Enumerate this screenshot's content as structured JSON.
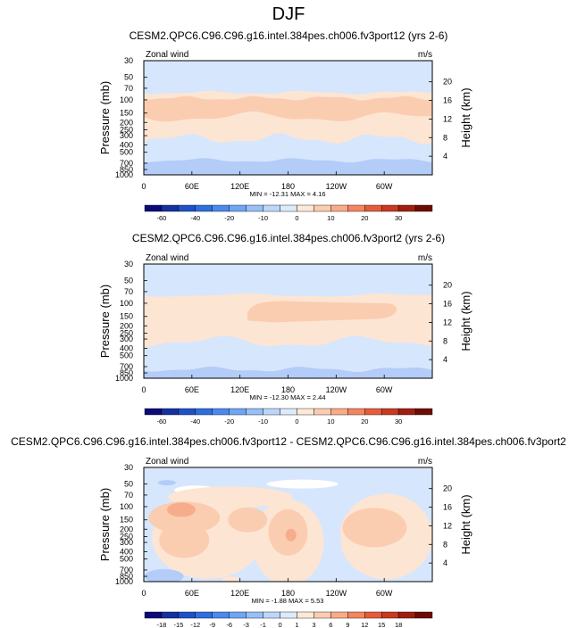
{
  "title": "DJF",
  "chart_data": [
    {
      "type": "heatmap",
      "title": "CESM2.QPC6.C96.C96.g16.intel.384pes.ch006.fv3port12 (yrs 2-6)",
      "variable": "Zonal wind",
      "units": "m/s",
      "ylabel": "Pressure (mb)",
      "y2label": "Height (km)",
      "x_ticks": [
        "0",
        "60E",
        "120E",
        "180",
        "120W",
        "60W"
      ],
      "p_ticks": [
        "30",
        "50",
        "70",
        "100",
        "150",
        "200",
        "250",
        "300",
        "400",
        "500",
        "700",
        "850",
        "1000"
      ],
      "h_ticks": [
        "20",
        "16",
        "12",
        "8",
        "4"
      ],
      "stats": "MIN = -12.31  MAX =  4.16",
      "colorbar_labels": [
        "-60",
        "-40",
        "-20",
        "-10",
        "0",
        "10",
        "20",
        "30"
      ],
      "levels": [
        -70,
        -60,
        -50,
        -40,
        -30,
        -20,
        -15,
        -10,
        -5,
        0,
        5,
        10,
        15,
        20,
        25,
        30,
        40
      ],
      "min": -12.31,
      "max": 4.16
    },
    {
      "type": "heatmap",
      "title": "CESM2.QPC6.C96.C96.g16.intel.384pes.ch006.fv3port2 (yrs 2-6)",
      "variable": "Zonal wind",
      "units": "m/s",
      "ylabel": "Pressure (mb)",
      "y2label": "Height (km)",
      "x_ticks": [
        "0",
        "60E",
        "120E",
        "180",
        "120W",
        "60W"
      ],
      "p_ticks": [
        "30",
        "50",
        "70",
        "100",
        "150",
        "200",
        "250",
        "300",
        "400",
        "500",
        "700",
        "850",
        "1000"
      ],
      "h_ticks": [
        "20",
        "16",
        "12",
        "8",
        "4"
      ],
      "stats": "MIN = -12.30  MAX =  2.44",
      "colorbar_labels": [
        "-60",
        "-40",
        "-20",
        "-10",
        "0",
        "10",
        "20",
        "30"
      ],
      "levels": [
        -70,
        -60,
        -50,
        -40,
        -30,
        -20,
        -15,
        -10,
        -5,
        0,
        5,
        10,
        15,
        20,
        25,
        30,
        40
      ],
      "min": -12.3,
      "max": 2.44
    },
    {
      "type": "heatmap",
      "title": "CESM2.QPC6.C96.C96.g16.intel.384pes.ch006.fv3port12 - CESM2.QPC6.C96.C96.g16.intel.384pes.ch006.fv3port2",
      "variable": "Zonal wind",
      "units": "m/s",
      "ylabel": "Pressure (mb)",
      "y2label": "Height (km)",
      "x_ticks": [
        "0",
        "60E",
        "120E",
        "180",
        "120W",
        "60W"
      ],
      "p_ticks": [
        "30",
        "50",
        "70",
        "100",
        "150",
        "200",
        "250",
        "300",
        "400",
        "500",
        "700",
        "850",
        "1000"
      ],
      "h_ticks": [
        "20",
        "16",
        "12",
        "8",
        "4"
      ],
      "stats": "MIN = -1.88  MAX =  5.53",
      "colorbar_labels": [
        "-18",
        "-15",
        "-12",
        "-9",
        "-6",
        "-3",
        "-1",
        "0",
        "1",
        "3",
        "6",
        "9",
        "12",
        "15",
        "18"
      ],
      "levels": [
        -21,
        -18,
        -15,
        -12,
        -9,
        -6,
        -3,
        -1,
        0,
        1,
        3,
        6,
        9,
        12,
        15,
        18,
        21
      ],
      "min": -1.88,
      "max": 5.53
    }
  ],
  "colors": {
    "scale": [
      "#0a0a7a",
      "#1432a0",
      "#1e50c8",
      "#2d6ee0",
      "#4a8aee",
      "#6fa5f5",
      "#97bff8",
      "#bcd6fb",
      "#dceafd",
      "#ffe8d8",
      "#fdccb0",
      "#f9ab88",
      "#f3855f",
      "#e65c3a",
      "#c93a20",
      "#a01e10",
      "#6e0c04"
    ],
    "deep_blue": "#b3ccf8",
    "light_blue": "#d6e6fc",
    "light_orange": "#fde5d4",
    "orange": "#fbcdb0",
    "dark_orange": "#f6ad8c",
    "red": "#ee8d70"
  }
}
